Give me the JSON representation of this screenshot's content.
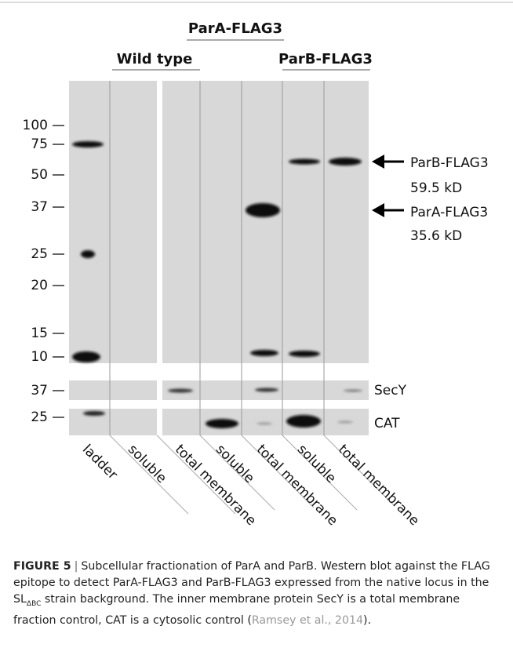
{
  "figure": {
    "group_labels": {
      "top": "ParA-FLAG3",
      "left": "Wild type",
      "right": "ParB-FLAG3"
    },
    "mw_markers": [
      "100",
      "75",
      "50",
      "37",
      "25",
      "20",
      "15",
      "10"
    ],
    "secy_marker": "37",
    "cat_marker": "25",
    "band_labels": [
      {
        "name": "ParB-FLAG3",
        "size": "59.5 kD"
      },
      {
        "name": "ParA-FLAG3",
        "size": "35.6 kD"
      }
    ],
    "panel_labels": [
      "SecY",
      "CAT"
    ],
    "lanes": [
      "ladder",
      "soluble",
      "total membrane",
      "soluble",
      "total membrane",
      "soluble",
      "total membrane"
    ],
    "caption": {
      "label": "FIGURE 5",
      "separator": "|",
      "text_1": "Subcellular fractionation of ParA and ParB. Western blot against the FLAG epitope to detect ParA-FLAG3 and ParB-FLAG3 expressed from the native locus in the SL",
      "subscript": "ΔBC",
      "text_2": " strain background. The inner membrane protein SecY is a total membrane fraction control, CAT is a cytosolic control (",
      "link": "Ramsey et al., 2014",
      "text_3": ")."
    }
  }
}
